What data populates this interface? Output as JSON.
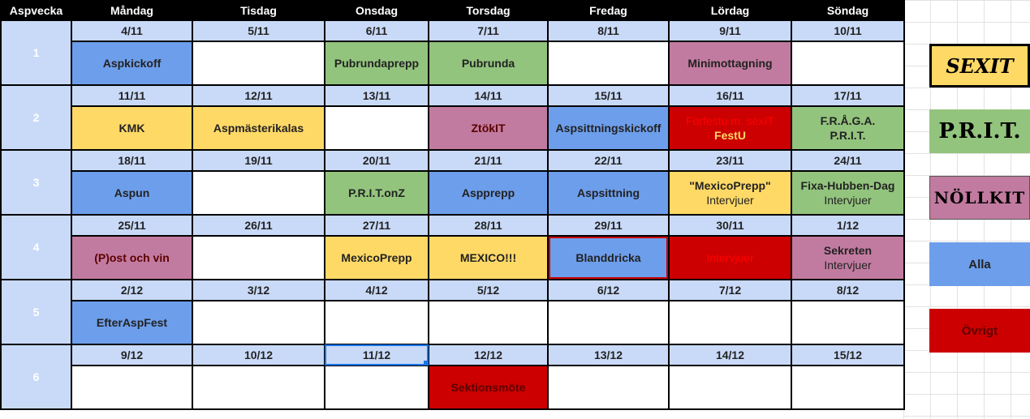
{
  "header": {
    "week_col": "Aspvecka",
    "days": [
      "Måndag",
      "Tisdag",
      "Onsdag",
      "Torsdag",
      "Fredag",
      "Lördag",
      "Söndag"
    ]
  },
  "weeks": [
    {
      "number": "1",
      "dates": [
        "4/11",
        "5/11",
        "6/11",
        "7/11",
        "8/11",
        "9/11",
        "10/11"
      ],
      "events": [
        {
          "lines": [
            "Aspkickoff"
          ],
          "color": "blue"
        },
        {
          "lines": [],
          "color": "white"
        },
        {
          "lines": [
            "Pubrundaprepp"
          ],
          "color": "green"
        },
        {
          "lines": [
            "Pubrunda"
          ],
          "color": "green"
        },
        {
          "lines": [],
          "color": "white"
        },
        {
          "lines": [
            "Minimottagning"
          ],
          "color": "pink"
        },
        {
          "lines": [],
          "color": "white"
        }
      ]
    },
    {
      "number": "2",
      "dates": [
        "11/11",
        "12/11",
        "13/11",
        "14/11",
        "15/11",
        "16/11",
        "17/11"
      ],
      "events": [
        {
          "lines": [
            "KMK"
          ],
          "color": "yellow"
        },
        {
          "lines": [
            "Aspmästerikalas"
          ],
          "color": "yellow"
        },
        {
          "lines": [],
          "color": "white"
        },
        {
          "lines": [
            "ZtökIT"
          ],
          "color": "pink",
          "text_style": "darkred"
        },
        {
          "lines": [
            "Aspsittningskickoff"
          ],
          "color": "blue"
        },
        {
          "lines": [
            "Förfestu m. sexIT",
            "FestU"
          ],
          "color": "red",
          "text_style": "red-gold"
        },
        {
          "lines": [
            "F.R.Å.G.A.",
            "P.R.I.T."
          ],
          "color": "green"
        }
      ]
    },
    {
      "number": "3",
      "dates": [
        "18/11",
        "19/11",
        "20/11",
        "21/11",
        "22/11",
        "23/11",
        "24/11"
      ],
      "events": [
        {
          "lines": [
            "Aspun"
          ],
          "color": "blue"
        },
        {
          "lines": [],
          "color": "white"
        },
        {
          "lines": [
            "P.R.I.T.onZ"
          ],
          "color": "green"
        },
        {
          "lines": [
            "Aspprepp"
          ],
          "color": "blue"
        },
        {
          "lines": [
            "Aspsittning"
          ],
          "color": "blue"
        },
        {
          "lines": [
            "\"MexicoPrepp\"",
            "Intervjuer"
          ],
          "color": "yellow"
        },
        {
          "lines": [
            "Fixa-Hubben-Dag",
            "Intervjuer"
          ],
          "color": "green"
        }
      ]
    },
    {
      "number": "4",
      "dates": [
        "25/11",
        "26/11",
        "27/11",
        "28/11",
        "29/11",
        "30/11",
        "1/12"
      ],
      "events": [
        {
          "lines": [
            "(P)ost och vin"
          ],
          "color": "pink",
          "text_style": "darkred"
        },
        {
          "lines": [],
          "color": "white"
        },
        {
          "lines": [
            "MexicoPrepp"
          ],
          "color": "yellow"
        },
        {
          "lines": [
            "MEXICO!!!"
          ],
          "color": "yellow"
        },
        {
          "lines": [
            "Blanddricka"
          ],
          "color": "blue",
          "selected": true
        },
        {
          "lines": [
            "Intervjuer"
          ],
          "color": "red",
          "text_style": "red"
        },
        {
          "lines": [
            "Sekreten",
            "Intervjuer"
          ],
          "color": "pink"
        }
      ]
    },
    {
      "number": "5",
      "dates": [
        "2/12",
        "3/12",
        "4/12",
        "5/12",
        "6/12",
        "7/12",
        "8/12"
      ],
      "events": [
        {
          "lines": [
            "EfterAspFest"
          ],
          "color": "blue"
        },
        {
          "lines": [],
          "color": "white"
        },
        {
          "lines": [],
          "color": "white"
        },
        {
          "lines": [],
          "color": "white"
        },
        {
          "lines": [],
          "color": "white"
        },
        {
          "lines": [],
          "color": "white"
        },
        {
          "lines": [],
          "color": "white"
        }
      ]
    },
    {
      "number": "6",
      "dates": [
        "9/12",
        "10/12",
        "11/12",
        "12/12",
        "13/12",
        "14/12",
        "15/12"
      ],
      "selected_date_index": 2,
      "events": [
        {
          "lines": [],
          "color": "white"
        },
        {
          "lines": [],
          "color": "white"
        },
        {
          "lines": [],
          "color": "white"
        },
        {
          "lines": [
            "Sektionsmöte"
          ],
          "color": "red",
          "text_style": "darkred"
        },
        {
          "lines": [],
          "color": "white"
        },
        {
          "lines": [],
          "color": "white"
        },
        {
          "lines": [],
          "color": "white"
        }
      ]
    }
  ],
  "legend": {
    "sexit": "SEXIT",
    "prit": "P.R.I.T.",
    "nollkit": "NÖLLKIT",
    "alla": "Alla",
    "ovrigt": "Övrigt"
  },
  "colors": {
    "blue": "#6d9eeb",
    "green": "#93c47d",
    "pink": "#c27ba0",
    "yellow": "#ffd966",
    "red": "#cc0000",
    "date_row": "#c9daf8"
  }
}
